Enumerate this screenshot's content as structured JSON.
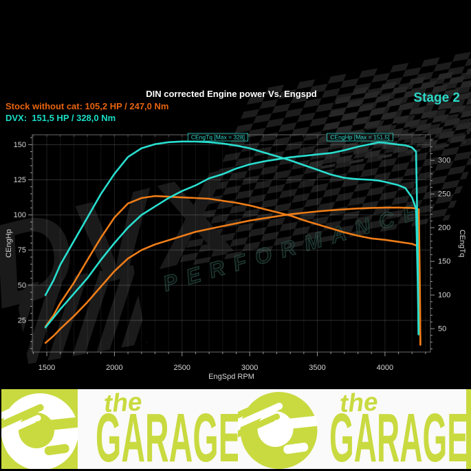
{
  "header": {
    "title": "DIN corrected Engine power Vs. Engspd",
    "stage_label": "Stage 2",
    "stock_line": "Stock without cat: 105,2 HP / 247,0 Nm",
    "tuned_line": "DVX:  151,5 HP / 328,0 Nm"
  },
  "colors": {
    "background": "#000000",
    "stock_curve": "#ef7d18",
    "tuned_curve": "#29dfd0",
    "stock_text": "#e8630d",
    "tuned_text": "#19ddc6",
    "title_text": "#ffffff",
    "axis_text": "#d6d6d6",
    "annotation": "#2edfd0",
    "lime": "#c9da40"
  },
  "watermark": {
    "brand": "DVX",
    "sub": "PERFORMANCE"
  },
  "footer": {
    "brand_script": "the",
    "brand_main": "GARAGE"
  },
  "chart_data": {
    "type": "line",
    "title": "DIN corrected Engine power Vs. Engspd",
    "xlabel": "EngSpd RPM",
    "ylabel_left": "CEngHp",
    "ylabel_right": "CEngTq",
    "xlim": [
      1393,
      4336
    ],
    "ylim_left": [
      2.5,
      157
    ],
    "ylim_right": [
      15.3,
      338
    ],
    "xticks": [
      1500,
      2000,
      2500,
      3000,
      3500,
      4000
    ],
    "yticks_left": [
      25,
      50,
      75,
      100,
      125,
      150
    ],
    "yticks_right": [
      50,
      100,
      150,
      200,
      250,
      300
    ],
    "grid": true,
    "legend_position": "none",
    "annotations": [
      {
        "text": "CEngTq [Max = 328]",
        "rpm": 2765
      },
      {
        "text": "CEngHp [Max = 151.5]",
        "rpm": 3815
      }
    ],
    "series": [
      {
        "id": "stock-torque",
        "name": "Stock without cat torque (Nm)",
        "axis": "right",
        "unit": "Nm",
        "color": "#ef7d18",
        "x": [
          1490,
          1550,
          1600,
          1700,
          1800,
          1900,
          2000,
          2100,
          2200,
          2300,
          2400,
          2500,
          2600,
          2700,
          2800,
          2900,
          3000,
          3100,
          3200,
          3300,
          3400,
          3500,
          3600,
          3700,
          3800,
          3900,
          4000,
          4100,
          4200,
          4250,
          4258,
          4262
        ],
        "y": [
          53,
          70,
          88,
          118,
          152,
          185,
          215,
          236,
          244,
          247,
          246,
          245,
          244,
          243,
          240,
          237,
          233,
          228,
          223,
          218,
          211,
          205,
          199,
          193,
          188,
          184,
          182,
          179,
          176,
          172,
          95,
          26
        ]
      },
      {
        "id": "stock-power",
        "name": "Stock without cat power (HP)",
        "axis": "left",
        "unit": "HP",
        "color": "#ef7d18",
        "x": [
          1490,
          1550,
          1600,
          1700,
          1800,
          1900,
          2000,
          2100,
          2200,
          2300,
          2400,
          2500,
          2600,
          2700,
          2800,
          2900,
          3000,
          3100,
          3200,
          3300,
          3400,
          3500,
          3600,
          3700,
          3800,
          3900,
          4000,
          4100,
          4200,
          4250,
          4258,
          4262
        ],
        "y": [
          9,
          14,
          19,
          28,
          38,
          49,
          60,
          69,
          75,
          79,
          82,
          85,
          88,
          90,
          92,
          94,
          96,
          97.5,
          99,
          100.5,
          101.5,
          102.5,
          103.3,
          104,
          104.6,
          105,
          105.2,
          105.2,
          105,
          104,
          50,
          8
        ]
      },
      {
        "id": "dvx-torque",
        "name": "DVX torque (Nm)",
        "axis": "right",
        "unit": "Nm",
        "color": "#29dfd0",
        "x": [
          1490,
          1550,
          1600,
          1700,
          1800,
          1900,
          2000,
          2100,
          2200,
          2300,
          2400,
          2500,
          2600,
          2700,
          2800,
          2900,
          3000,
          3100,
          3200,
          3300,
          3400,
          3500,
          3600,
          3700,
          3800,
          3900,
          3950,
          4000,
          4100,
          4150,
          4200,
          4230,
          4242,
          4248
        ],
        "y": [
          100,
          122,
          145,
          180,
          215,
          250,
          280,
          305,
          318,
          324,
          327,
          328,
          328,
          327,
          325,
          322,
          318,
          312,
          306,
          300,
          293,
          286,
          279,
          274,
          272,
          271,
          270,
          268,
          263,
          259,
          245,
          228,
          120,
          45
        ]
      },
      {
        "id": "dvx-power",
        "name": "DVX power (HP)",
        "axis": "left",
        "unit": "HP",
        "color": "#29dfd0",
        "x": [
          1490,
          1550,
          1600,
          1700,
          1800,
          1900,
          2000,
          2100,
          2200,
          2300,
          2400,
          2500,
          2600,
          2700,
          2800,
          2900,
          3000,
          3100,
          3200,
          3300,
          3400,
          3500,
          3600,
          3700,
          3800,
          3900,
          3950,
          4000,
          4100,
          4150,
          4200,
          4230,
          4242,
          4248
        ],
        "y": [
          20,
          27,
          33,
          44,
          55,
          68,
          80,
          91,
          100,
          106,
          112,
          117,
          121,
          126,
          129,
          133,
          136,
          138,
          139.5,
          141,
          142,
          143,
          144,
          146,
          148.5,
          150.5,
          151.5,
          151.3,
          150,
          149.5,
          148,
          145,
          80,
          15
        ]
      }
    ]
  }
}
